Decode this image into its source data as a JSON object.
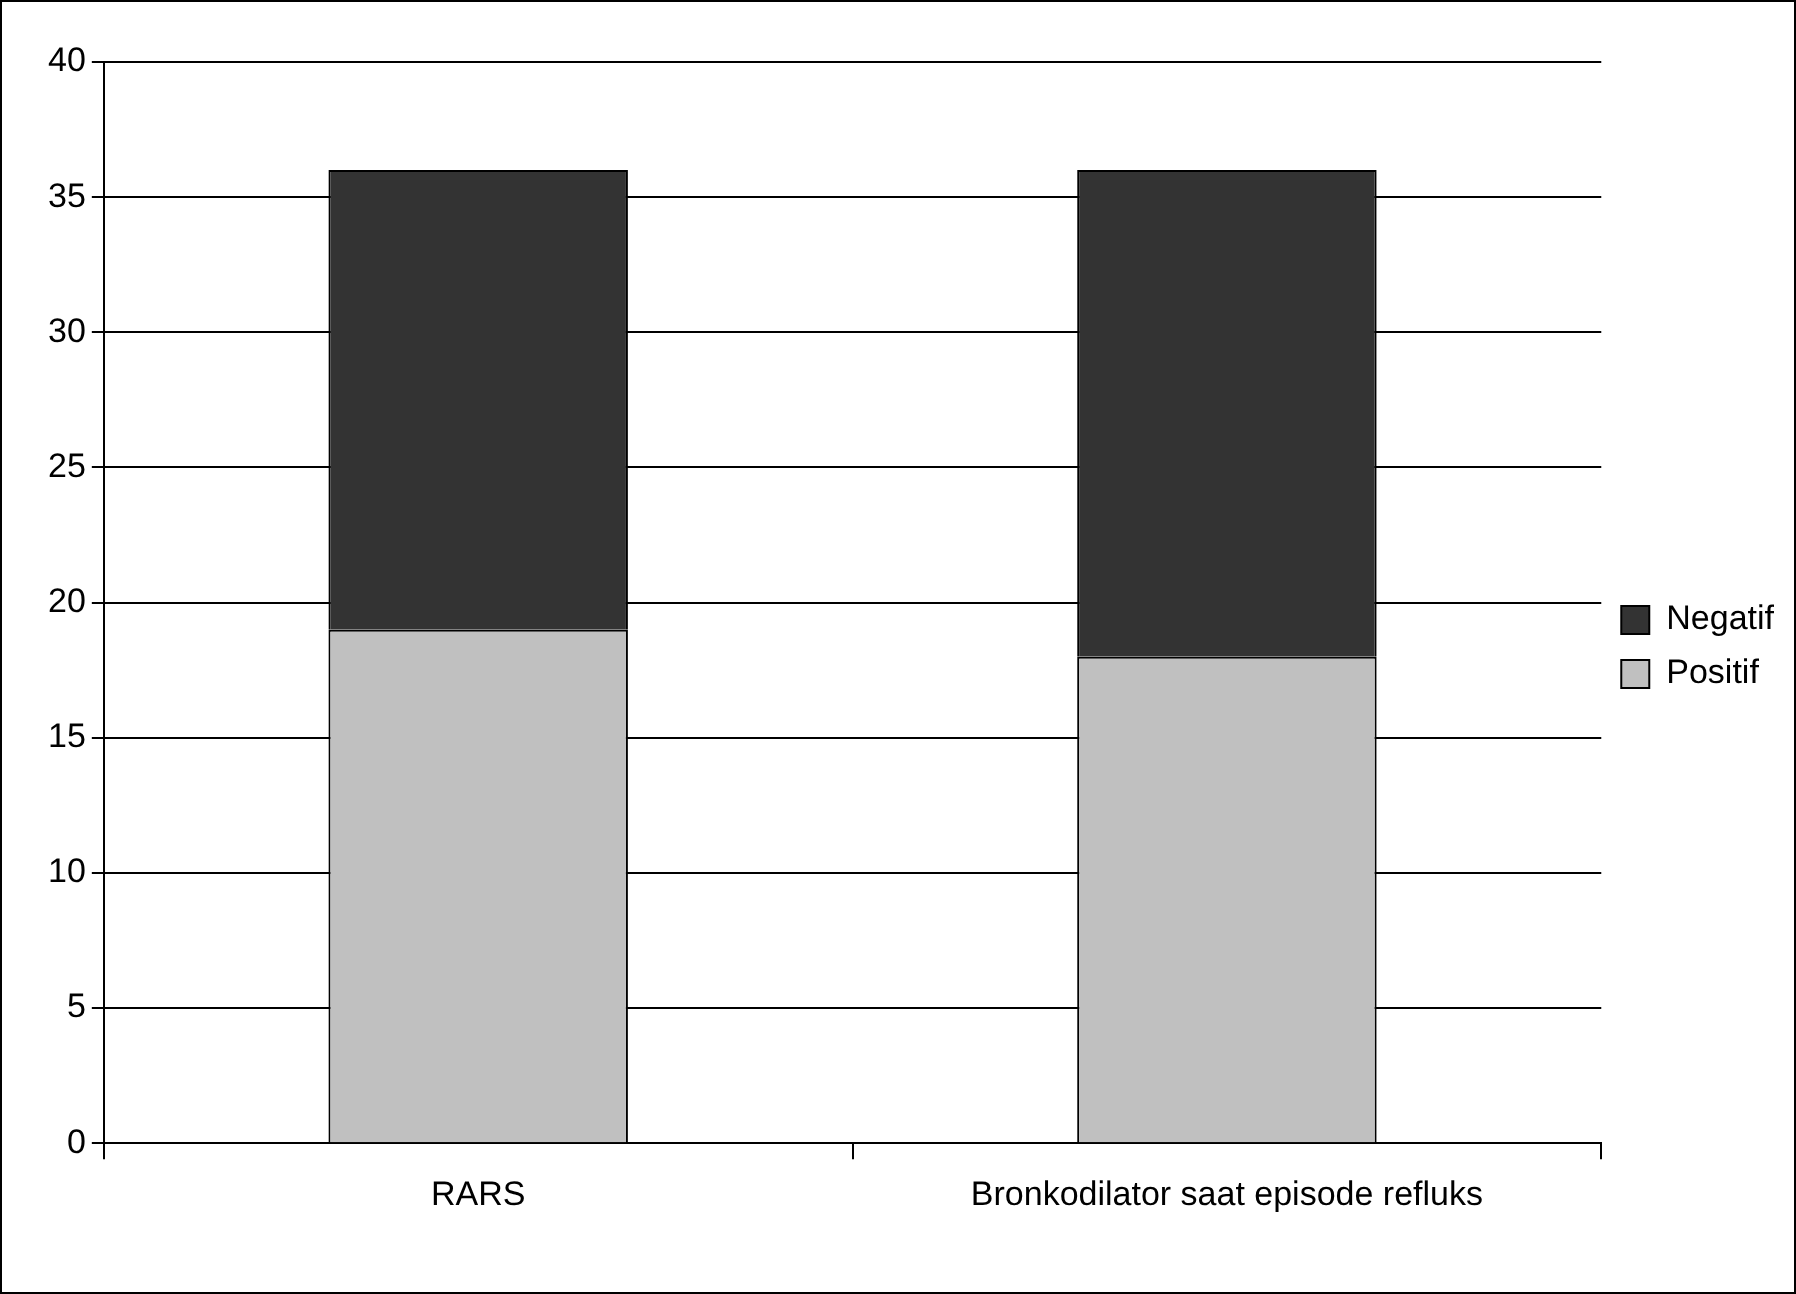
{
  "chart_data": {
    "type": "bar",
    "stacked": true,
    "categories": [
      "RARS",
      "Bronkodilator saat episode refluks"
    ],
    "series": [
      {
        "name": "Positif",
        "color": "#c0c0c0",
        "values": [
          19,
          18
        ]
      },
      {
        "name": "Negatif",
        "color": "#333333",
        "values": [
          17,
          18
        ]
      }
    ],
    "ylim": [
      0,
      40
    ],
    "yticks": [
      0,
      5,
      10,
      15,
      20,
      25,
      30,
      35,
      40
    ],
    "grid": "y",
    "legend": "right"
  }
}
